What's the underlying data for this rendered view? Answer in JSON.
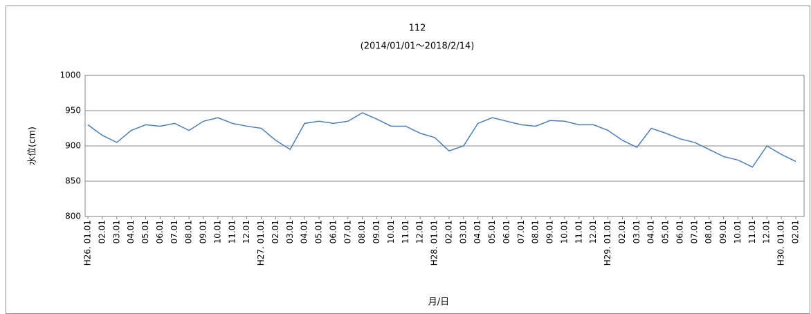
{
  "chart_data": {
    "type": "line",
    "title": "112",
    "subtitle": "(2014/01/01～2018/2/14)",
    "y_label": "水位(cm)",
    "x_label": "月/日",
    "categories": [
      "H26. 01.01",
      "02.01",
      "03.01",
      "04.01",
      "05.01",
      "06.01",
      "07.01",
      "08.01",
      "09.01",
      "10.01",
      "11.01",
      "12.01",
      "H27. 01.01",
      "02.01",
      "03.01",
      "04.01",
      "05.01",
      "06.01",
      "07.01",
      "08.01",
      "09.01",
      "10.01",
      "11.01",
      "12.01",
      "H28. 01.01",
      "02.01",
      "03.01",
      "04.01",
      "05.01",
      "06.01",
      "07.01",
      "08.01",
      "09.01",
      "10.01",
      "11.01",
      "12.01",
      "H29. 01.01",
      "02.01",
      "03.01",
      "04.01",
      "05.01",
      "06.01",
      "07.01",
      "08.01",
      "09.01",
      "10.01",
      "11.01",
      "12.01",
      "H30. 01.01",
      "02.01"
    ],
    "series": [
      {
        "name": "112",
        "color": "#4a7ebb",
        "values": [
          930,
          915,
          905,
          922,
          930,
          928,
          932,
          922,
          935,
          940,
          932,
          928,
          925,
          908,
          895,
          932,
          935,
          932,
          935,
          947,
          938,
          928,
          928,
          918,
          912,
          893,
          900,
          932,
          940,
          935,
          930,
          928,
          936,
          935,
          930,
          930,
          922,
          908,
          898,
          925,
          918,
          910,
          905,
          895,
          885,
          880,
          870,
          900,
          888,
          878
        ]
      }
    ],
    "ylim": [
      800,
      1000
    ],
    "yticks": [
      800,
      850,
      900,
      950,
      1000
    ],
    "grid": true
  }
}
